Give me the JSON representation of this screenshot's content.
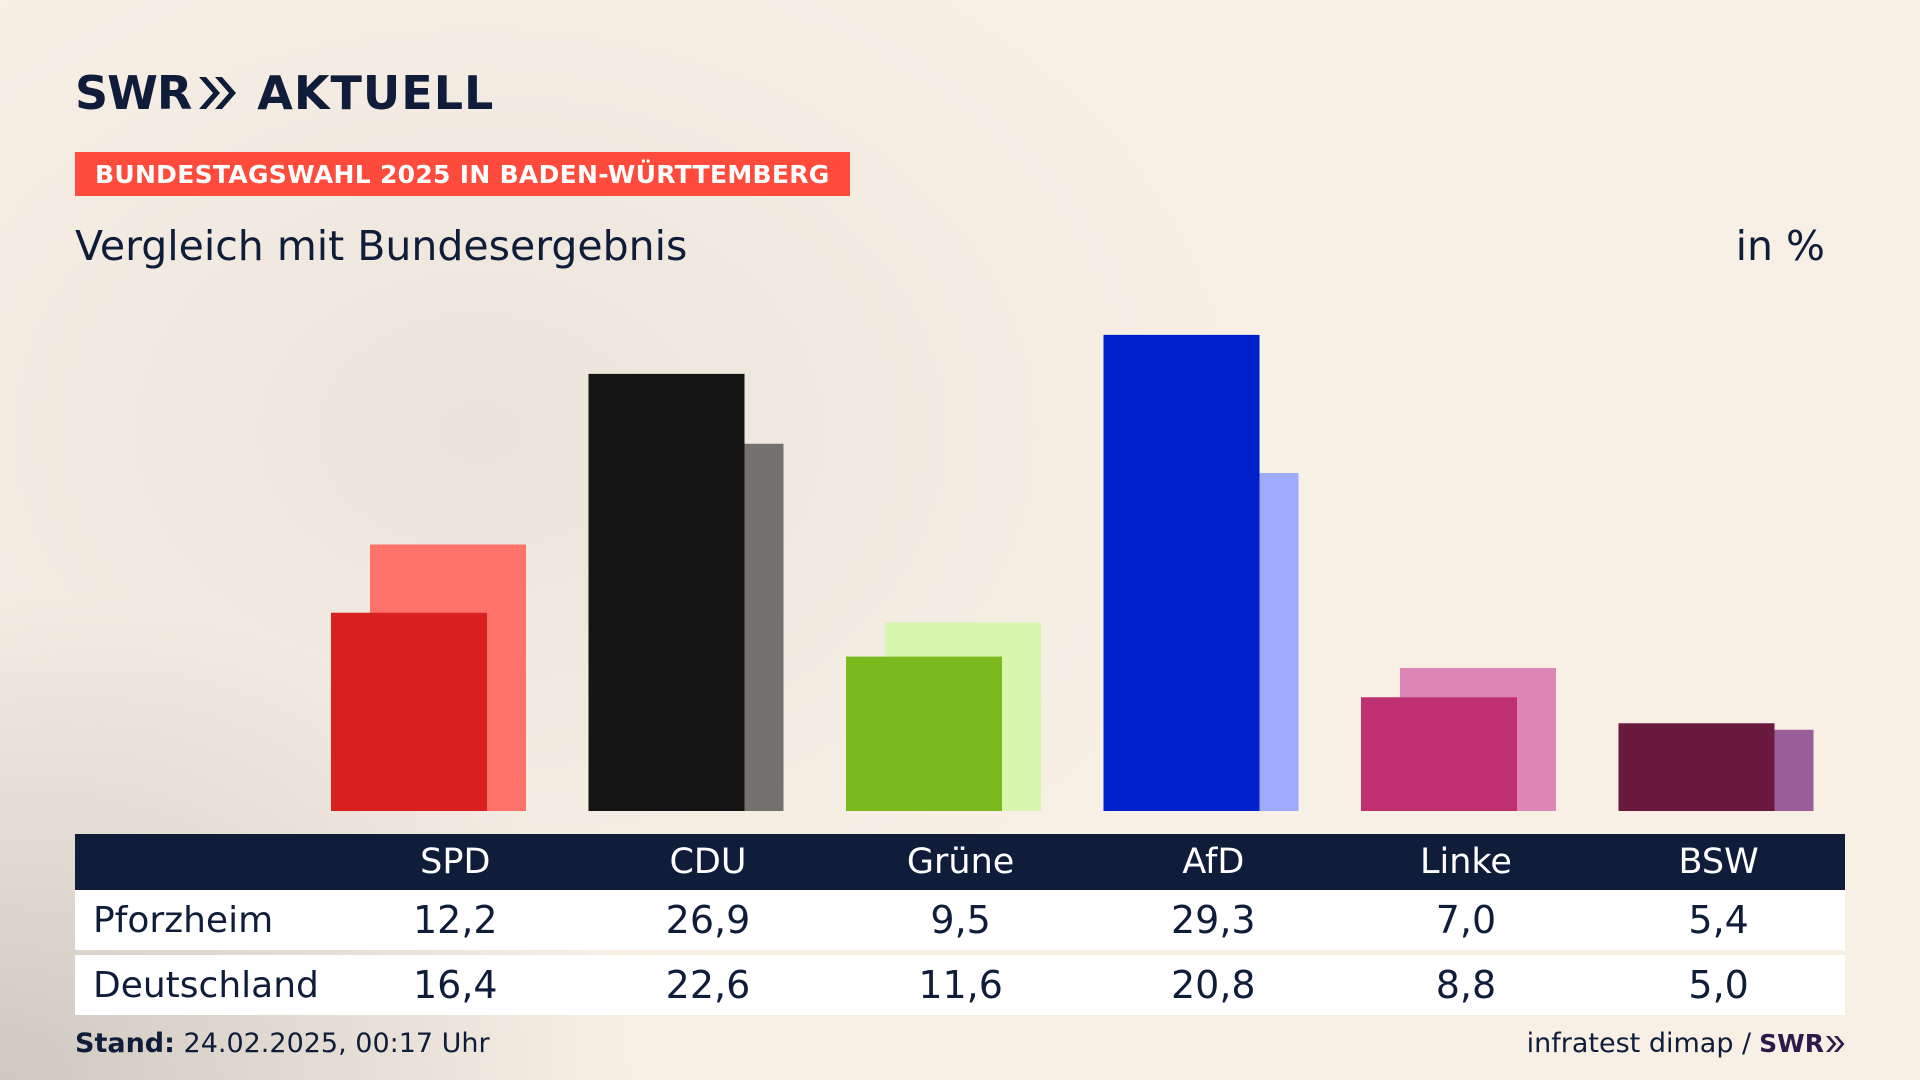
{
  "header": {
    "logo_swr": "SWR",
    "logo_aktuell": "AKTUELL",
    "badge": "BUNDESTAGSWAHL 2025 IN BADEN-WÜRTTEMBERG",
    "subtitle": "Vergleich mit Bundesergebnis",
    "unit": "in %"
  },
  "table": {
    "rows": [
      {
        "label": "Pforzheim",
        "values": [
          "12,2",
          "26,9",
          "9,5",
          "29,3",
          "7,0",
          "5,4"
        ]
      },
      {
        "label": "Deutschland",
        "values": [
          "16,4",
          "22,6",
          "11,6",
          "20,8",
          "8,8",
          "5,0"
        ]
      }
    ]
  },
  "footer": {
    "stand_label": "Stand:",
    "stand_value": "24.02.2025, 00:17 Uhr",
    "source": "infratest dimap /",
    "source_logo": "SWR"
  },
  "chart_data": {
    "type": "bar",
    "categories": [
      "SPD",
      "CDU",
      "Grüne",
      "AfD",
      "Linke",
      "BSW"
    ],
    "series": [
      {
        "name": "Pforzheim",
        "values": [
          12.2,
          26.9,
          9.5,
          29.3,
          7.0,
          5.4
        ]
      },
      {
        "name": "Deutschland",
        "values": [
          16.4,
          22.6,
          11.6,
          20.8,
          8.8,
          5.0
        ]
      }
    ],
    "colors": {
      "Pforzheim": [
        "#d92020",
        "#141414",
        "#7aba1e",
        "#0021c9",
        "#bf3070",
        "#6a1a3e"
      ],
      "Deutschland": [
        "#ff7169",
        "#74716e",
        "#d9f6ae",
        "#9eaafc",
        "#de87b6",
        "#9b5e9a"
      ]
    },
    "ylim": [
      0,
      30
    ],
    "grid": false,
    "unit": "in %"
  }
}
